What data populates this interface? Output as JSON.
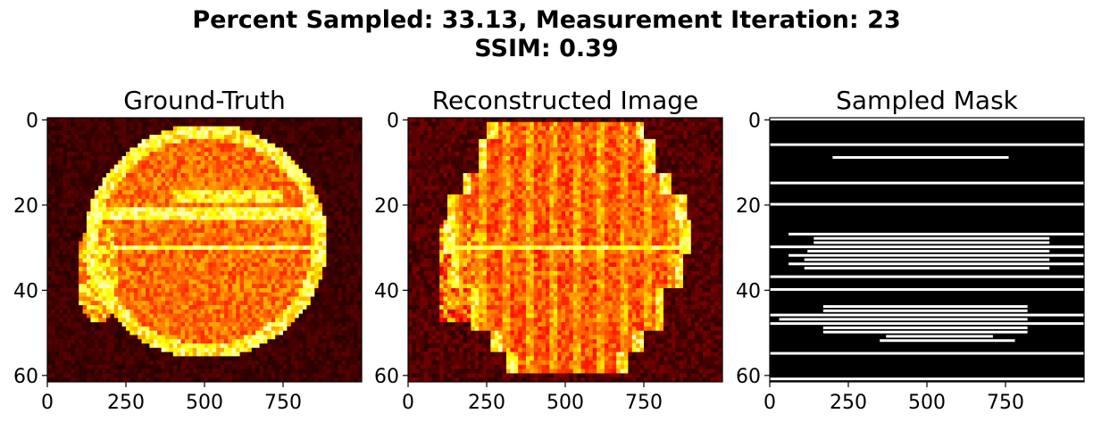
{
  "figure": {
    "suptitle_line1": "Percent Sampled: 33.13, Measurement Iteration: 23",
    "suptitle_line2": "SSIM: 0.39"
  },
  "chart_data": [
    {
      "type": "heatmap",
      "title": "Ground-Truth",
      "colormap": "hot",
      "xlim": [
        0,
        1000
      ],
      "ylim": [
        61.5,
        -0.5
      ],
      "x_ticks": [
        0,
        250,
        500,
        750
      ],
      "y_ticks": [
        0,
        20,
        40,
        60
      ],
      "x_tick_labels": [
        "0",
        "250",
        "500",
        "750"
      ],
      "y_tick_labels": [
        "0",
        "20",
        "40",
        "60"
      ],
      "image_rows": 62,
      "image_cols": 1000,
      "content": "bright red/yellow circular object on dark background; horizontal streak artifacts near rows 22 and 30"
    },
    {
      "type": "heatmap",
      "title": "Reconstructed Image",
      "colormap": "hot",
      "xlim": [
        0,
        1000
      ],
      "ylim": [
        61.5,
        -0.5
      ],
      "x_ticks": [
        0,
        250,
        500,
        750
      ],
      "y_ticks": [
        0,
        20,
        40,
        60
      ],
      "x_tick_labels": [
        "0",
        "250",
        "500",
        "750"
      ],
      "y_tick_labels": [
        "0",
        "20",
        "40",
        "60"
      ],
      "image_rows": 62,
      "image_cols": 1000,
      "content": "blocky, vertically streaked reconstruction of the circular object"
    },
    {
      "type": "heatmap",
      "title": "Sampled Mask",
      "colormap": "gray",
      "xlim": [
        0,
        1000
      ],
      "ylim": [
        61.5,
        -0.5
      ],
      "x_ticks": [
        0,
        250,
        500,
        750
      ],
      "y_ticks": [
        0,
        20,
        40,
        60
      ],
      "x_tick_labels": [
        "0",
        "250",
        "500",
        "750"
      ],
      "y_tick_labels": [
        "0",
        "20",
        "40",
        "60"
      ],
      "image_rows": 62,
      "image_cols": 1000,
      "sampled_segments": [
        {
          "row": 0,
          "x0": 0,
          "x1": 1000
        },
        {
          "row": 6,
          "x0": 0,
          "x1": 1000
        },
        {
          "row": 9,
          "x0": 200,
          "x1": 760
        },
        {
          "row": 15,
          "x0": 0,
          "x1": 1000
        },
        {
          "row": 20,
          "x0": 0,
          "x1": 1000
        },
        {
          "row": 27,
          "x0": 60,
          "x1": 1000
        },
        {
          "row": 28,
          "x0": 140,
          "x1": 890
        },
        {
          "row": 29,
          "x0": 140,
          "x1": 890
        },
        {
          "row": 30,
          "x0": 0,
          "x1": 1000
        },
        {
          "row": 31,
          "x0": 120,
          "x1": 890
        },
        {
          "row": 32,
          "x0": 60,
          "x1": 1000
        },
        {
          "row": 33,
          "x0": 110,
          "x1": 890
        },
        {
          "row": 34,
          "x0": 60,
          "x1": 1000
        },
        {
          "row": 35,
          "x0": 110,
          "x1": 890
        },
        {
          "row": 37,
          "x0": 0,
          "x1": 1000
        },
        {
          "row": 40,
          "x0": 0,
          "x1": 1000
        },
        {
          "row": 44,
          "x0": 170,
          "x1": 820
        },
        {
          "row": 45,
          "x0": 170,
          "x1": 820
        },
        {
          "row": 46,
          "x0": 0,
          "x1": 1000
        },
        {
          "row": 47,
          "x0": 30,
          "x1": 820
        },
        {
          "row": 48,
          "x0": 0,
          "x1": 1000
        },
        {
          "row": 49,
          "x0": 170,
          "x1": 820
        },
        {
          "row": 50,
          "x0": 170,
          "x1": 820
        },
        {
          "row": 51,
          "x0": 370,
          "x1": 710
        },
        {
          "row": 52,
          "x0": 350,
          "x1": 780
        },
        {
          "row": 55,
          "x0": 0,
          "x1": 1000
        },
        {
          "row": 61,
          "x0": 0,
          "x1": 1000
        }
      ]
    }
  ]
}
